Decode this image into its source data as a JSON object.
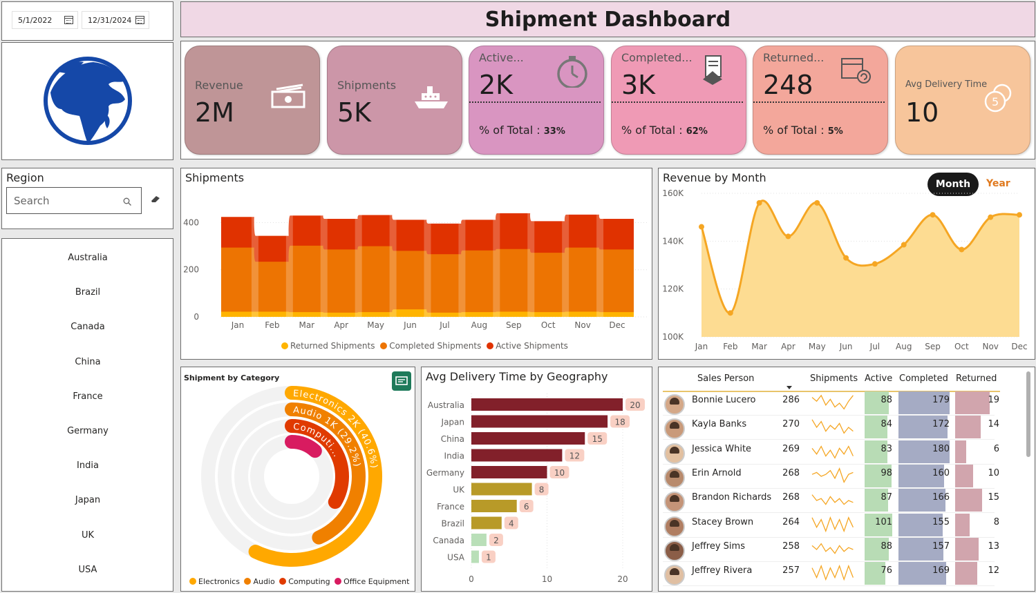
{
  "dates": {
    "start": "5/1/2022",
    "end": "12/31/2024"
  },
  "header": {
    "title": "Shipment Dashboard"
  },
  "kpis": [
    {
      "label": "Revenue",
      "value": "2M",
      "color": "#bf9597",
      "icon": "money-icon"
    },
    {
      "label": "Shipments",
      "value": "5K",
      "color": "#cc96a8",
      "icon": "ship-icon"
    },
    {
      "label": "Active...",
      "value": "2K",
      "color": "#d995c1",
      "pct_label": "% of Total : ",
      "pct": "33%",
      "icon": "stopwatch-icon"
    },
    {
      "label": "Completed...",
      "value": "3K",
      "color": "#ef9ab5",
      "pct_label": "% of Total : ",
      "pct": "62%",
      "icon": "handshake-icon"
    },
    {
      "label": "Returned...",
      "value": "248",
      "color": "#f3a79b",
      "pct_label": "% of Total : ",
      "pct": "5%",
      "icon": "return-box-icon"
    },
    {
      "label": "Avg Delivery Time",
      "value": "10",
      "color": "#f7c59b",
      "icon": "coin-icon"
    }
  ],
  "region": {
    "title": "Region",
    "search_placeholder": "Search",
    "countries": [
      "Australia",
      "Brazil",
      "Canada",
      "China",
      "France",
      "Germany",
      "India",
      "Japan",
      "UK",
      "USA"
    ]
  },
  "shipments_chart": {
    "title": "Shipments",
    "legend": [
      "Returned Shipments",
      "Completed Shipments",
      "Active Shipments"
    ]
  },
  "revenue_chart": {
    "title": "Revenue by Month",
    "toggle_month": "Month",
    "toggle_year": "Year"
  },
  "category_chart": {
    "title": "Shipment by Category",
    "ring_labels": [
      "Electronics 2K (40.6%)",
      "Audio 1K (29.2%)",
      "Computi..."
    ],
    "legend": [
      "Electronics",
      "Audio",
      "Computing",
      "Office Equipment"
    ]
  },
  "delivery_chart": {
    "title": "Avg Delivery Time by Geography"
  },
  "table": {
    "headers": [
      "Sales Person",
      "Shipments",
      "Active",
      "Completed",
      "Returned"
    ],
    "rows": [
      {
        "name": "Bonnie Lucero",
        "shipments": "286",
        "active": "88",
        "completed": "179",
        "returned": "19"
      },
      {
        "name": "Kayla Banks",
        "shipments": "270",
        "active": "84",
        "completed": "172",
        "returned": "14"
      },
      {
        "name": "Jessica White",
        "shipments": "269",
        "active": "83",
        "completed": "180",
        "returned": "6"
      },
      {
        "name": "Erin Arnold",
        "shipments": "268",
        "active": "98",
        "completed": "160",
        "returned": "10"
      },
      {
        "name": "Brandon Richards",
        "shipments": "268",
        "active": "87",
        "completed": "166",
        "returned": "15"
      },
      {
        "name": "Stacey Brown",
        "shipments": "264",
        "active": "101",
        "completed": "155",
        "returned": "8"
      },
      {
        "name": "Jeffrey Sims",
        "shipments": "258",
        "active": "88",
        "completed": "157",
        "returned": "13"
      },
      {
        "name": "Jeffrey Rivera",
        "shipments": "257",
        "active": "76",
        "completed": "169",
        "returned": "12"
      }
    ]
  },
  "chart_data": [
    {
      "type": "area",
      "title": "Shipments",
      "categories": [
        "Jan",
        "Feb",
        "Mar",
        "Apr",
        "May",
        "Jun",
        "Jul",
        "Aug",
        "Sep",
        "Oct",
        "Nov",
        "Dec"
      ],
      "yticks": [
        0,
        200,
        400
      ],
      "ylim": [
        0,
        460
      ],
      "series": [
        {
          "name": "Returned Shipments",
          "color": "#ffb400",
          "values": [
            22,
            22,
            20,
            18,
            20,
            32,
            18,
            20,
            22,
            20,
            22,
            20
          ]
        },
        {
          "name": "Completed Shipments",
          "color": "#ed7402",
          "values": [
            272,
            212,
            282,
            268,
            280,
            248,
            248,
            262,
            266,
            252,
            272,
            266
          ]
        },
        {
          "name": "Active Shipments",
          "color": "#e03200",
          "values": [
            130,
            110,
            128,
            130,
            132,
            132,
            130,
            130,
            152,
            134,
            140,
            130
          ]
        }
      ]
    },
    {
      "type": "area",
      "title": "Revenue by Month",
      "categories": [
        "Jan",
        "Feb",
        "Mar",
        "Apr",
        "May",
        "Jun",
        "Jul",
        "Aug",
        "Sep",
        "Oct",
        "Nov",
        "Dec"
      ],
      "yticks": [
        "100K",
        "120K",
        "140K",
        "160K"
      ],
      "ylim": [
        100000,
        160000
      ],
      "series": [
        {
          "name": "Revenue",
          "color": "#f5a623",
          "values": [
            146000,
            110000,
            156000,
            142000,
            156000,
            133000,
            130500,
            138500,
            151000,
            136500,
            150000,
            151000
          ]
        }
      ]
    },
    {
      "type": "bar",
      "title": "Avg Delivery Time by Geography",
      "categories": [
        "Australia",
        "Japan",
        "China",
        "India",
        "Germany",
        "UK",
        "France",
        "Brazil",
        "Canada",
        "USA"
      ],
      "values": [
        20,
        18,
        15,
        12,
        10,
        8,
        6,
        4,
        2,
        1
      ],
      "xticks": [
        0,
        10,
        20
      ],
      "xlim": [
        0,
        20
      ]
    },
    {
      "type": "radial-bar",
      "title": "Shipment by Category",
      "categories": [
        "Electronics",
        "Audio",
        "Computing",
        "Office Equipment"
      ],
      "values": [
        40.6,
        29.2,
        20.0,
        10.2
      ],
      "colors": [
        "#ffa800",
        "#f08000",
        "#e03a00",
        "#d81b60"
      ]
    }
  ]
}
